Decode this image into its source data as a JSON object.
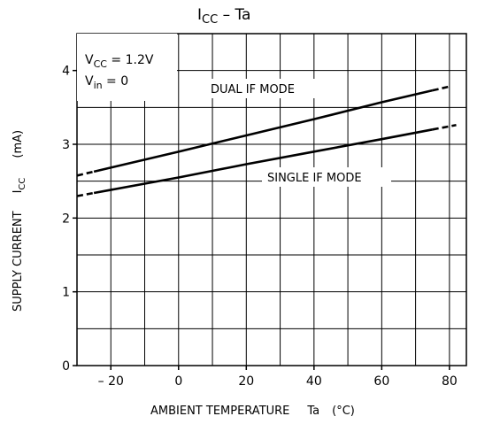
{
  "chart_data": {
    "type": "line",
    "title": {
      "main": "I",
      "sub": "CC",
      "rest": " – Ta"
    },
    "xlabel": {
      "text": "AMBIENT TEMPERATURE",
      "symbol": "Ta",
      "unit": "(°C)"
    },
    "ylabel": {
      "text": "SUPPLY CURRENT",
      "symbol": "I",
      "sub": "CC",
      "unit": "(mA)"
    },
    "xlim": [
      -30,
      85
    ],
    "ylim": [
      0,
      4.5
    ],
    "x_ticks": [
      -20,
      0,
      20,
      40,
      60,
      80
    ],
    "x_tick_labels": [
      "– 20",
      "0",
      "20",
      "40",
      "60",
      "80"
    ],
    "y_ticks": [
      0,
      1,
      2,
      3,
      4
    ],
    "y_tick_labels": [
      "0",
      "1",
      "2",
      "3",
      "4"
    ],
    "grid": true,
    "conditions": [
      {
        "pre": "V",
        "sub": "CC",
        "post": " = 1.2V"
      },
      {
        "pre": "V",
        "sub": "in",
        "post": " = 0"
      }
    ],
    "series": [
      {
        "name": "DUAL IF MODE",
        "x": [
          -25,
          0,
          20,
          40,
          60,
          75
        ],
        "y": [
          2.63,
          2.9,
          3.12,
          3.34,
          3.57,
          3.73
        ],
        "dash_x": [
          75,
          80
        ]
      },
      {
        "name": "SINGLE IF MODE",
        "x": [
          -25,
          0,
          20,
          40,
          60,
          75
        ],
        "y": [
          2.34,
          2.55,
          2.73,
          2.9,
          3.07,
          3.2
        ],
        "dash_x": [
          75,
          82
        ]
      }
    ]
  }
}
